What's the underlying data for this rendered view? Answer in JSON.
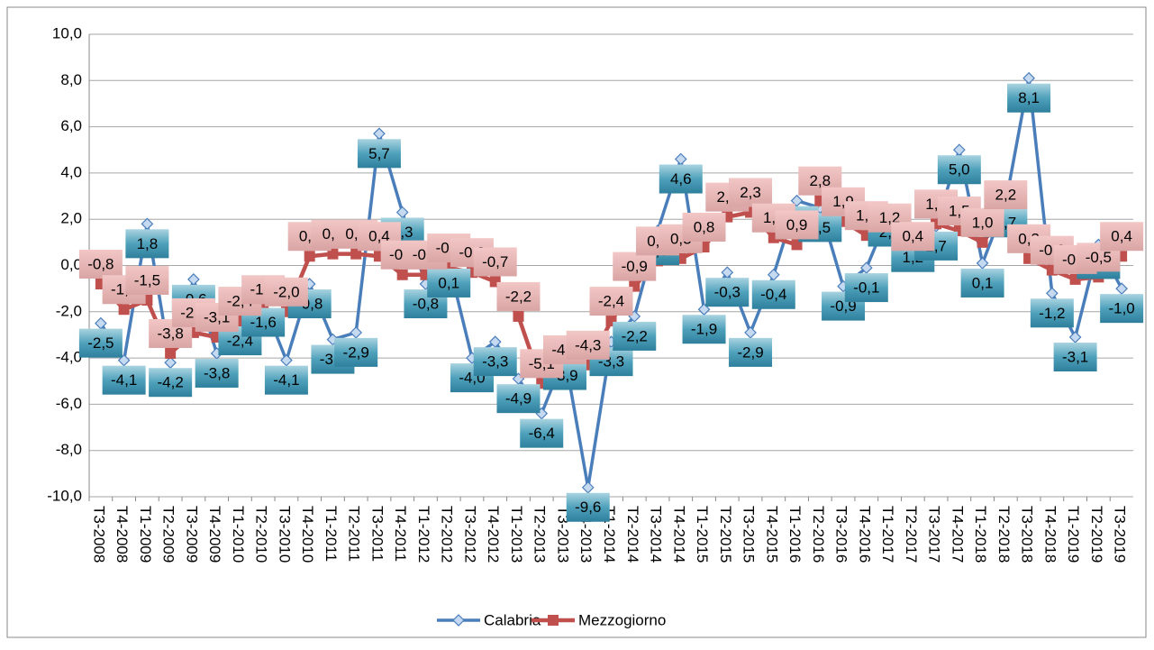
{
  "chart_data": {
    "type": "line",
    "categories": [
      "T3-2008",
      "T4-2008",
      "T1-2009",
      "T2-2009",
      "T3-2009",
      "T4-2009",
      "T1-2010",
      "T2-2010",
      "T3-2010",
      "T4-2010",
      "T1-2011",
      "T2-2011",
      "T3-2011",
      "T4-2011",
      "T1-2012",
      "T2-2012",
      "T3-2012",
      "T4-2012",
      "T1-2013",
      "T2-2013",
      "T3-2013",
      "T4-2013",
      "T1-2014",
      "T2-2014",
      "T3-2014",
      "T4-2014",
      "T1-2015",
      "T2-2015",
      "T3-2015",
      "T4-2015",
      "T1-2016",
      "T2-2016",
      "T3-2016",
      "T4-2016",
      "T1-2017",
      "T2-2017",
      "T3-2017",
      "T4-2017",
      "T1-2018",
      "T2-2018",
      "T3-2018",
      "T4-2018",
      "T1-2019",
      "T2-2019",
      "T3-2019"
    ],
    "series": [
      {
        "name": "Calabria",
        "color": "#4a7ebb",
        "values": [
          -2.5,
          -4.1,
          1.8,
          -4.2,
          -0.6,
          -3.8,
          -2.4,
          -1.6,
          -4.1,
          -0.8,
          -3.2,
          -2.9,
          5.7,
          2.3,
          -0.8,
          0.1,
          -4.0,
          -3.3,
          -4.9,
          -6.4,
          -3.9,
          -9.6,
          -3.3,
          -2.2,
          1.5,
          4.6,
          -1.9,
          -0.3,
          -2.9,
          -0.4,
          2.8,
          2.5,
          -0.9,
          -0.1,
          2.3,
          1.2,
          1.7,
          5.0,
          0.1,
          2.7,
          8.1,
          -1.2,
          -3.1,
          0.9,
          -1.0
        ],
        "value_labels": [
          "-2,5",
          "-4,1",
          "1,8",
          "-4,2",
          "-0,6",
          "-3,8",
          "-2,4",
          "-1,6",
          "-4,1",
          "-0,8",
          "-3,2",
          "-2,9",
          "5,7",
          "2,3",
          "-0,8",
          "0,1",
          "-4,0",
          "-3,3",
          "-4,9",
          "-6,4",
          "-3,9",
          "-9,6",
          "-3,3",
          "-2,2",
          "1,5",
          "4,6",
          "-1,9",
          "-0,3",
          "-2,9",
          "-0,4",
          "2,8",
          "2,5",
          "-0,9",
          "-0,1",
          "2,3",
          "1,2",
          "1,7",
          "5,0",
          "0,1",
          "2,7",
          "8,1",
          "-1,2",
          "-3,1",
          "0,9",
          "-1,0"
        ]
      },
      {
        "name": "Mezzogiorno",
        "color": "#c0504d",
        "values": [
          -0.8,
          -1.9,
          -1.5,
          -3.8,
          -2.9,
          -3.1,
          -2.4,
          -1.9,
          -2.0,
          0.4,
          0.5,
          0.5,
          0.4,
          -0.4,
          -0.4,
          -0.1,
          -0.3,
          -0.7,
          -2.2,
          -5.1,
          -4.5,
          -4.3,
          -2.4,
          -0.9,
          0.2,
          0.3,
          0.8,
          2.1,
          2.3,
          1.2,
          0.9,
          2.8,
          1.9,
          1.3,
          1.2,
          0.4,
          1.8,
          1.5,
          1.0,
          2.2,
          0.3,
          -0.2,
          -0.6,
          -0.5,
          0.4
        ],
        "value_labels": [
          "-0,8",
          "-1,9",
          "-1,5",
          "-3,8",
          "-2,9",
          "-3,1",
          "-2,4",
          "-1,9",
          "-2,0",
          "0,4",
          "0,5",
          "0,5",
          "0,4",
          "-0,4",
          "-0,4",
          "-0,1",
          "-0,3",
          "-0,7",
          "-2,2",
          "-5,1",
          "-4,5",
          "-4,3",
          "-2,4",
          "-0,9",
          "0,2",
          "0,3",
          "0,8",
          "2,1",
          "2,3",
          "1,2",
          "0,9",
          "2,8",
          "1,9",
          "1,3",
          "1,2",
          "0,4",
          "1,8",
          "1,5",
          "1,0",
          "2,2",
          "0,3",
          "-0,2",
          "-0,6",
          "-0,5",
          "0,4"
        ]
      }
    ],
    "ylim": [
      -10,
      10
    ],
    "yticks": [
      {
        "value": -10,
        "label": "-10,0"
      },
      {
        "value": -8,
        "label": "-8,0"
      },
      {
        "value": -6,
        "label": "-6,0"
      },
      {
        "value": -4,
        "label": "-4,0"
      },
      {
        "value": -2,
        "label": "-2,0"
      },
      {
        "value": 0,
        "label": "0,0"
      },
      {
        "value": 2,
        "label": "2,0"
      },
      {
        "value": 4,
        "label": "4,0"
      },
      {
        "value": 6,
        "label": "6,0"
      },
      {
        "value": 8,
        "label": "8,0"
      },
      {
        "value": 10,
        "label": "10,0"
      }
    ],
    "grid": true,
    "legend": "bottom"
  }
}
